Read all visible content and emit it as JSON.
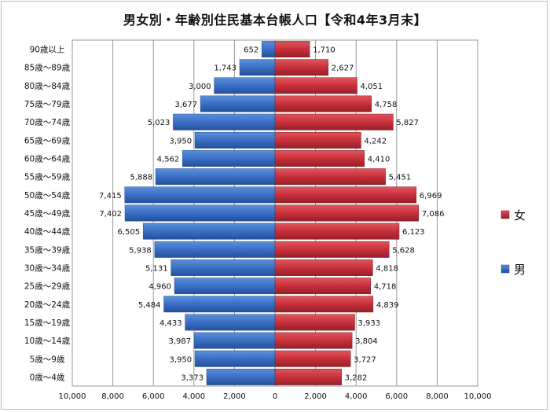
{
  "chart_data": {
    "type": "bar",
    "title": "男女別・年齢別住民基本台帳人口【令和4年3月末】",
    "categories": [
      "90歳以上",
      "85歳～89歳",
      "80歳～84歳",
      "75歳～79歳",
      "70歳～74歳",
      "65歳～69歳",
      "60歳～64歳",
      "55歳～59歳",
      "50歳～54歳",
      "45歳～49歳",
      "40歳～44歳",
      "35歳～39歳",
      "30歳～34歳",
      "25歳～29歳",
      "20歳～24歳",
      "15歳～19歳",
      "10歳～14歳",
      "5歳～9歳",
      "0歳～4歳"
    ],
    "series": [
      {
        "name": "男",
        "color": "#3a6fc4",
        "values": [
          652,
          1743,
          3000,
          3677,
          5023,
          3950,
          4562,
          5888,
          7415,
          7402,
          6505,
          5938,
          5131,
          4960,
          5484,
          4433,
          3987,
          3950,
          3373
        ],
        "labels": [
          "652",
          "1,743",
          "3,000",
          "3,677",
          "5,023",
          "3,950",
          "4,562",
          "5,888",
          "7,415",
          "7,402",
          "6,505",
          "5,938",
          "5,131",
          "4,960",
          "5,484",
          "4,433",
          "3,987",
          "3,950",
          "3,373"
        ]
      },
      {
        "name": "女",
        "color": "#c8303a",
        "values": [
          1710,
          2627,
          4051,
          4758,
          5827,
          4242,
          4410,
          5451,
          6969,
          7086,
          6123,
          5628,
          4818,
          4718,
          4839,
          3933,
          3804,
          3727,
          3282
        ],
        "labels": [
          "1,710",
          "2,627",
          "4,051",
          "4,758",
          "5,827",
          "4,242",
          "4,410",
          "5,451",
          "6,969",
          "7,086",
          "6,123",
          "5,628",
          "4,818",
          "4,718",
          "4,839",
          "3,933",
          "3,804",
          "3,727",
          "3,282"
        ]
      }
    ],
    "xlim": [
      -10000,
      10000
    ],
    "xticks": [
      -10000,
      -8000,
      -6000,
      -4000,
      -2000,
      0,
      2000,
      4000,
      6000,
      8000,
      10000
    ],
    "xtick_labels": [
      "10,000",
      "8,000",
      "6,000",
      "4,000",
      "2,000",
      "0",
      "2,000",
      "4,000",
      "6,000",
      "8,000",
      "10,000"
    ],
    "grid": true,
    "legend": {
      "position": "right",
      "entries": [
        "女",
        "男"
      ]
    }
  }
}
